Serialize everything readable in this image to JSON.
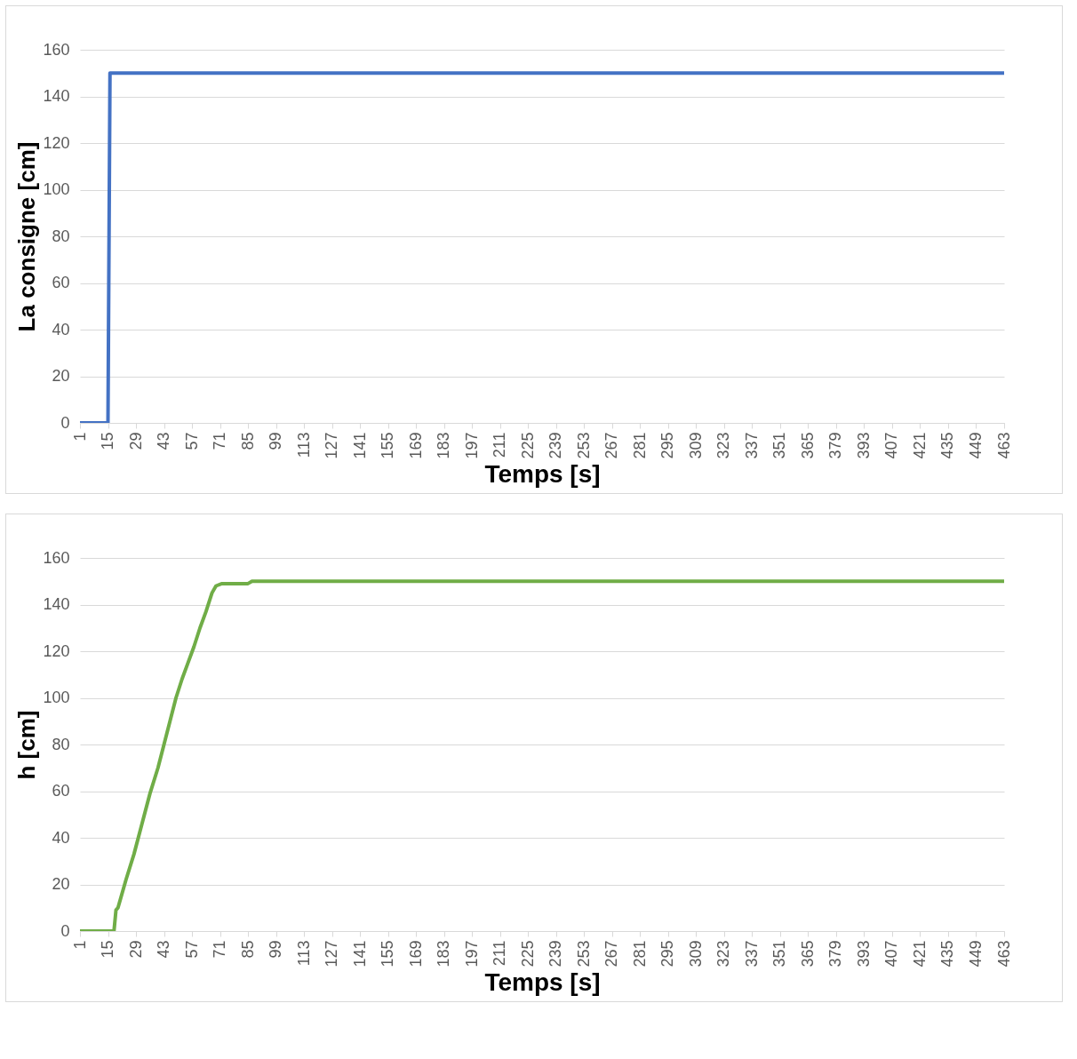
{
  "chart_data": [
    {
      "type": "line",
      "xlabel": "Temps [s]",
      "ylabel": "La consigne [cm]",
      "x": [
        1,
        15,
        16,
        463
      ],
      "xlim": [
        1,
        463
      ],
      "xticks": [
        1,
        15,
        29,
        43,
        57,
        71,
        85,
        99,
        113,
        127,
        141,
        155,
        169,
        183,
        197,
        211,
        225,
        239,
        253,
        267,
        281,
        295,
        309,
        323,
        337,
        351,
        365,
        379,
        393,
        407,
        421,
        435,
        449,
        463
      ],
      "ylim": [
        0,
        160
      ],
      "yticks": [
        0,
        20,
        40,
        60,
        80,
        100,
        120,
        140,
        160
      ],
      "grid": "y",
      "series": [
        {
          "color": "#4472c4",
          "values": [
            0,
            0,
            150,
            150
          ]
        }
      ]
    },
    {
      "type": "line",
      "xlabel": "Temps [s]",
      "ylabel": "h [cm]",
      "x": [
        1,
        18,
        19,
        20,
        24,
        28,
        32,
        36,
        40,
        43,
        46,
        49,
        52,
        55,
        58,
        61,
        64,
        67,
        69,
        72,
        85,
        87,
        463
      ],
      "xlim": [
        1,
        463
      ],
      "xticks": [
        1,
        15,
        29,
        43,
        57,
        71,
        85,
        99,
        113,
        127,
        141,
        155,
        169,
        183,
        197,
        211,
        225,
        239,
        253,
        267,
        281,
        295,
        309,
        323,
        337,
        351,
        365,
        379,
        393,
        407,
        421,
        435,
        449,
        463
      ],
      "ylim": [
        0,
        160
      ],
      "yticks": [
        0,
        20,
        40,
        60,
        80,
        100,
        120,
        140,
        160
      ],
      "grid": "y",
      "series": [
        {
          "color": "#70ad47",
          "values": [
            0,
            0,
            9,
            10,
            22,
            33,
            46,
            59,
            70,
            80,
            90,
            100,
            108,
            115,
            122,
            130,
            137,
            145,
            148,
            149,
            149,
            150,
            150
          ]
        }
      ]
    }
  ]
}
